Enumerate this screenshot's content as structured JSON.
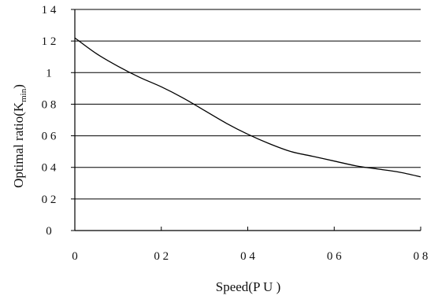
{
  "chart_data": {
    "type": "line",
    "title": "",
    "xlabel": "Speed(P U )",
    "ylabel_main": "Optimal ratio(K",
    "ylabel_sub": "min",
    "ylabel_close": ")",
    "xlim": [
      0,
      0.8
    ],
    "ylim": [
      0,
      1.4
    ],
    "x_ticks": [
      0,
      0.2,
      0.4,
      0.6,
      0.8
    ],
    "x_tick_labels": [
      "0",
      "0 2",
      "0 4",
      "0 6",
      "0 8"
    ],
    "y_ticks": [
      0,
      0.2,
      0.4,
      0.6,
      0.8,
      1.0,
      1.2,
      1.4
    ],
    "y_tick_labels": [
      "0",
      "0 2",
      "0 4",
      "0 6",
      "0 8",
      "1",
      "1 2",
      "1 4"
    ],
    "grid": "horizontal",
    "legend": "none",
    "colors": {
      "line": "#000000",
      "grid": "#000000",
      "axis": "#000000"
    },
    "series": [
      {
        "x": [
          0,
          0.05,
          0.1,
          0.15,
          0.2,
          0.25,
          0.3,
          0.35,
          0.4,
          0.45,
          0.5,
          0.55,
          0.6,
          0.65,
          0.7,
          0.75,
          0.8
        ],
        "values": [
          1.22,
          1.12,
          1.04,
          0.97,
          0.91,
          0.84,
          0.76,
          0.68,
          0.61,
          0.55,
          0.5,
          0.47,
          0.44,
          0.41,
          0.39,
          0.37,
          0.34
        ]
      }
    ]
  }
}
